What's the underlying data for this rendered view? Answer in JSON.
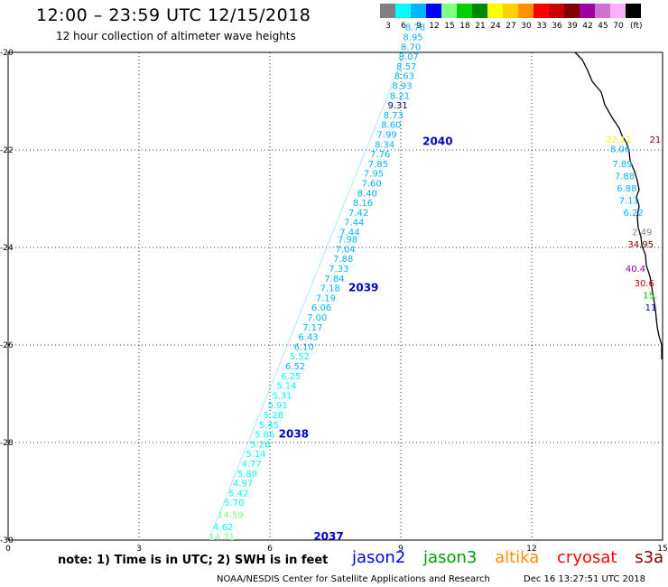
{
  "header": {
    "title": "12:00 – 23:59 UTC 12/15/2018",
    "subtitle": "12 hour collection of altimeter wave heights"
  },
  "colorbar": {
    "unit": "(ft)",
    "entries": [
      {
        "label": "3",
        "color": "#808080"
      },
      {
        "label": "6",
        "color": "#00ffff"
      },
      {
        "label": "9",
        "color": "#00b4ff"
      },
      {
        "label": "12",
        "color": "#0000ff"
      },
      {
        "label": "15",
        "color": "#80ff80"
      },
      {
        "label": "18",
        "color": "#00d000"
      },
      {
        "label": "21",
        "color": "#008800"
      },
      {
        "label": "24",
        "color": "#ffff00"
      },
      {
        "label": "27",
        "color": "#ffd000"
      },
      {
        "label": "30",
        "color": "#ff9000"
      },
      {
        "label": "33",
        "color": "#ff0000"
      },
      {
        "label": "36",
        "color": "#c80000"
      },
      {
        "label": "39",
        "color": "#800000"
      },
      {
        "label": "42",
        "color": "#a000a0"
      },
      {
        "label": "45",
        "color": "#d070d0"
      },
      {
        "label": "70",
        "color": "#ffb0ff"
      },
      {
        "label": "",
        "color": "#000000"
      }
    ]
  },
  "axes": {
    "x_ticks": [
      "0",
      "3",
      "6",
      "9",
      "12",
      "15"
    ],
    "y_ticks": [
      "-20",
      "-22",
      "-24",
      "-26",
      "-28",
      "-30"
    ],
    "x_values": [
      0,
      3,
      6,
      9,
      12,
      15
    ],
    "y_values": [
      -20,
      -22,
      -24,
      -26,
      -28,
      -30
    ],
    "xlim": [
      0,
      15
    ],
    "ylim": [
      -30,
      -20
    ],
    "grid": true
  },
  "track": {
    "start": [
      4.6,
      -30.0
    ],
    "end": [
      9.1,
      -20.0
    ],
    "color": "#00c8ff",
    "labels": [
      {
        "text": "14.71",
        "color": "#80ff80",
        "x": 4.6,
        "y": -30.0
      },
      {
        "text": "4.62",
        "color": "#00ffff",
        "x": 4.7,
        "y": -29.8
      },
      {
        "text": "14.59",
        "color": "#80ff80",
        "x": 4.8,
        "y": -29.55
      },
      {
        "text": "5.70",
        "color": "#00ffff",
        "x": 4.95,
        "y": -29.3
      },
      {
        "text": "5.42",
        "color": "#00ffff",
        "x": 5.05,
        "y": -29.1
      },
      {
        "text": "4.97",
        "color": "#00ffff",
        "x": 5.15,
        "y": -28.9
      },
      {
        "text": "5.80",
        "color": "#00ffff",
        "x": 5.25,
        "y": -28.7
      },
      {
        "text": "4.77",
        "color": "#00ffff",
        "x": 5.35,
        "y": -28.5
      },
      {
        "text": "5.14",
        "color": "#00ffff",
        "x": 5.45,
        "y": -28.3
      },
      {
        "text": "5.26",
        "color": "#00ffff",
        "x": 5.55,
        "y": -28.1
      },
      {
        "text": "5.86",
        "color": "#00ffff",
        "x": 5.65,
        "y": -27.9
      },
      {
        "text": "5.45",
        "color": "#00ffff",
        "x": 5.75,
        "y": -27.7
      },
      {
        "text": "5.28",
        "color": "#00ffff",
        "x": 5.85,
        "y": -27.5
      },
      {
        "text": "5.91",
        "color": "#00ffff",
        "x": 5.95,
        "y": -27.3
      },
      {
        "text": "5.31",
        "color": "#00ffff",
        "x": 6.05,
        "y": -27.1
      },
      {
        "text": "5.14",
        "color": "#00ffff",
        "x": 6.15,
        "y": -26.9
      },
      {
        "text": "6.25",
        "color": "#00ffff",
        "x": 6.25,
        "y": -26.7
      },
      {
        "text": "6.52",
        "color": "#00b4ff",
        "x": 6.35,
        "y": -26.5
      },
      {
        "text": "5.52",
        "color": "#00ffff",
        "x": 6.45,
        "y": -26.3
      },
      {
        "text": "6.10",
        "color": "#00b4ff",
        "x": 6.55,
        "y": -26.1
      },
      {
        "text": "6.43",
        "color": "#00b4ff",
        "x": 6.65,
        "y": -25.9
      },
      {
        "text": "7.17",
        "color": "#00b4ff",
        "x": 6.75,
        "y": -25.7
      },
      {
        "text": "7.00",
        "color": "#00b4ff",
        "x": 6.85,
        "y": -25.5
      },
      {
        "text": "6.06",
        "color": "#00b4ff",
        "x": 6.95,
        "y": -25.3
      },
      {
        "text": "7.19",
        "color": "#00b4ff",
        "x": 7.05,
        "y": -25.1
      },
      {
        "text": "7.18",
        "color": "#00b4ff",
        "x": 7.15,
        "y": -24.9
      },
      {
        "text": "7.84",
        "color": "#00b4ff",
        "x": 7.25,
        "y": -24.7
      },
      {
        "text": "7.33",
        "color": "#00b4ff",
        "x": 7.35,
        "y": -24.5
      },
      {
        "text": "7.88",
        "color": "#00b4ff",
        "x": 7.45,
        "y": -24.3
      },
      {
        "text": "7.04",
        "color": "#00b4ff",
        "x": 7.5,
        "y": -24.1
      },
      {
        "text": "7.98",
        "color": "#00b4ff",
        "x": 7.55,
        "y": -23.9
      },
      {
        "text": "7.44",
        "color": "#00b4ff",
        "x": 7.6,
        "y": -23.75
      },
      {
        "text": "7.44",
        "color": "#00b4ff",
        "x": 7.7,
        "y": -23.55
      },
      {
        "text": "7.42",
        "color": "#00b4ff",
        "x": 7.8,
        "y": -23.35
      },
      {
        "text": "8.16",
        "color": "#00b4ff",
        "x": 7.9,
        "y": -23.15
      },
      {
        "text": "8.40",
        "color": "#00b4ff",
        "x": 8.0,
        "y": -22.95
      },
      {
        "text": "7.60",
        "color": "#00b4ff",
        "x": 8.1,
        "y": -22.75
      },
      {
        "text": "7.95",
        "color": "#00b4ff",
        "x": 8.15,
        "y": -22.55
      },
      {
        "text": "7.85",
        "color": "#00b4ff",
        "x": 8.25,
        "y": -22.35
      },
      {
        "text": "7.76",
        "color": "#00b4ff",
        "x": 8.3,
        "y": -22.15
      },
      {
        "text": "8.34",
        "color": "#00b4ff",
        "x": 8.4,
        "y": -21.95
      },
      {
        "text": "7.99",
        "color": "#00b4ff",
        "x": 8.45,
        "y": -21.75
      },
      {
        "text": "8.60",
        "color": "#00b4ff",
        "x": 8.55,
        "y": -21.55
      },
      {
        "text": "8.73",
        "color": "#00b4ff",
        "x": 8.6,
        "y": -21.35
      },
      {
        "text": "9.31",
        "color": "#000080",
        "x": 8.7,
        "y": -21.15
      },
      {
        "text": "8.21",
        "color": "#00b4ff",
        "x": 8.75,
        "y": -20.95
      },
      {
        "text": "8.93",
        "color": "#00b4ff",
        "x": 8.8,
        "y": -20.75
      },
      {
        "text": "8.63",
        "color": "#00b4ff",
        "x": 8.85,
        "y": -20.55
      },
      {
        "text": "8.57",
        "color": "#00b4ff",
        "x": 8.9,
        "y": -20.35
      },
      {
        "text": "8.07",
        "color": "#00b4ff",
        "x": 8.95,
        "y": -20.15
      },
      {
        "text": "8.70",
        "color": "#00b4ff",
        "x": 9.0,
        "y": -19.95
      },
      {
        "text": "8.95",
        "color": "#00b4ff",
        "x": 9.05,
        "y": -19.75
      },
      {
        "text": "8.78",
        "color": "#00b4ff",
        "x": 9.1,
        "y": -19.55
      }
    ],
    "pass_labels": [
      {
        "text": "2037",
        "x": 7.0,
        "y": -30.0
      },
      {
        "text": "2038",
        "x": 6.2,
        "y": -27.9
      },
      {
        "text": "2039",
        "x": 7.8,
        "y": -24.9
      },
      {
        "text": "2040",
        "x": 9.5,
        "y": -21.9
      }
    ]
  },
  "coast_labels": [
    {
      "text": "22.11",
      "color": "#ffff00",
      "x": 13.7,
      "y": -21.85
    },
    {
      "text": "21",
      "color": "#800000",
      "x": 14.7,
      "y": -21.85
    },
    {
      "text": "8.06",
      "color": "#00b4ff",
      "x": 13.8,
      "y": -22.05
    },
    {
      "text": "7.89",
      "color": "#00b4ff",
      "x": 13.85,
      "y": -22.35
    },
    {
      "text": "7.88",
      "color": "#00b4ff",
      "x": 13.9,
      "y": -22.6
    },
    {
      "text": "6.88",
      "color": "#00b4ff",
      "x": 13.95,
      "y": -22.85
    },
    {
      "text": "7.11",
      "color": "#00b4ff",
      "x": 14.0,
      "y": -23.1
    },
    {
      "text": "6.22",
      "color": "#00b4ff",
      "x": 14.1,
      "y": -23.35
    },
    {
      "text": "2.49",
      "color": "#808080",
      "x": 14.3,
      "y": -23.75
    },
    {
      "text": "34.95",
      "color": "#800000",
      "x": 14.2,
      "y": -24.0
    },
    {
      "text": "40.4",
      "color": "#a000a0",
      "x": 14.15,
      "y": -24.5
    },
    {
      "text": "30.6",
      "color": "#c80000",
      "x": 14.35,
      "y": -24.8
    },
    {
      "text": "15.",
      "color": "#00d000",
      "x": 14.55,
      "y": -25.05
    },
    {
      "text": "11",
      "color": "#0000ff",
      "x": 14.6,
      "y": -25.3
    }
  ],
  "note": "note: 1) Time is in UTC; 2) SWH is in feet",
  "satellites": [
    {
      "name": "jason2",
      "color": "#0000ff"
    },
    {
      "name": "jason3",
      "color": "#00a000"
    },
    {
      "name": "altika",
      "color": "#ff9000"
    },
    {
      "name": "cryosat",
      "color": "#ff0000"
    },
    {
      "name": "s3a",
      "color": "#800000"
    }
  ],
  "footer": {
    "credit": "NOAA/NESDIS Center for Satellite Applications and Research",
    "timestamp": "Dec 16 13:27:51 UTC 2018"
  },
  "chart_data": {
    "type": "scatter",
    "title": "12:00 – 23:59 UTC 12/15/2018",
    "subtitle": "12 hour collection of altimeter wave heights",
    "xlim": [
      0,
      15
    ],
    "ylim": [
      -30,
      -20
    ],
    "xticks": [
      0,
      3,
      6,
      9,
      12,
      15
    ],
    "yticks": [
      -20,
      -22,
      -24,
      -26,
      -28,
      -30
    ],
    "grid": true
  }
}
